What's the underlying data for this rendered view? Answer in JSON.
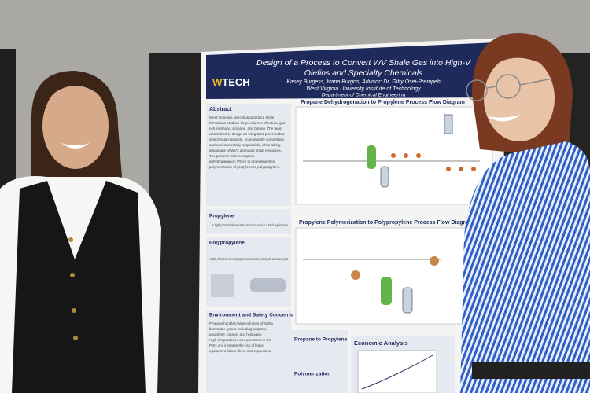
{
  "poster": {
    "logo": "TECH",
    "title": "Design of a Process to Convert WV Shale Gas into High-V",
    "subtitle": "Olefins and Specialty Chemicals",
    "authors": "Kasey Burgess, Ivana Burgos, Advisor: Dr. Gifty Osei-Prempeh",
    "institution": "West Virginia University Institute of Technology",
    "department": "Department of Chemical Engineering",
    "abstract": {
      "heading": "Abstract",
      "lines": [
        "West Virginia's Marcellus and Utica shale",
        "formations produce large volumes of natural gas",
        "rich in ethane, propane, and butane. The team",
        "was tasked to design an integrated process that",
        "is technically feasible, economically competitive,",
        "and environmentally responsible, while taking",
        "advantage of WV's abundant shale resources.",
        "The process follows propane",
        "dehydrogenation (PDH) to propylene then",
        "polymerization of propylene to polypropylene."
      ]
    },
    "propylene": {
      "heading": "Propylene",
      "text": "A highly flammable important chemical used in a lot of applications"
    },
    "polypropylene": {
      "heading": "Polypropylene",
      "text": "A durable, chemical and heat-resistant polymer used in automotive, medical, textile and consumer goods"
    },
    "pfd1": "Propane Dehydrogenation to Propylene Process Flow Diagram",
    "pfd2": "Propylene Polymerization to Polypropylene Process Flow Diagra",
    "safety": {
      "heading": "Environment and Safety Concerns",
      "lines": [
        "Propane handles large volumes of highly",
        "flammable gases, including propane,",
        "propylene, butane, and hydrogen.",
        "High temperatures and pressures in the",
        "PDH unit increase the risk of leaks,",
        "equipment failure, fires, and explosions."
      ]
    },
    "propane_to_propylene": "Propane to Propylene",
    "polymerization": "Polymerization",
    "economic": "Economic Analysis"
  }
}
